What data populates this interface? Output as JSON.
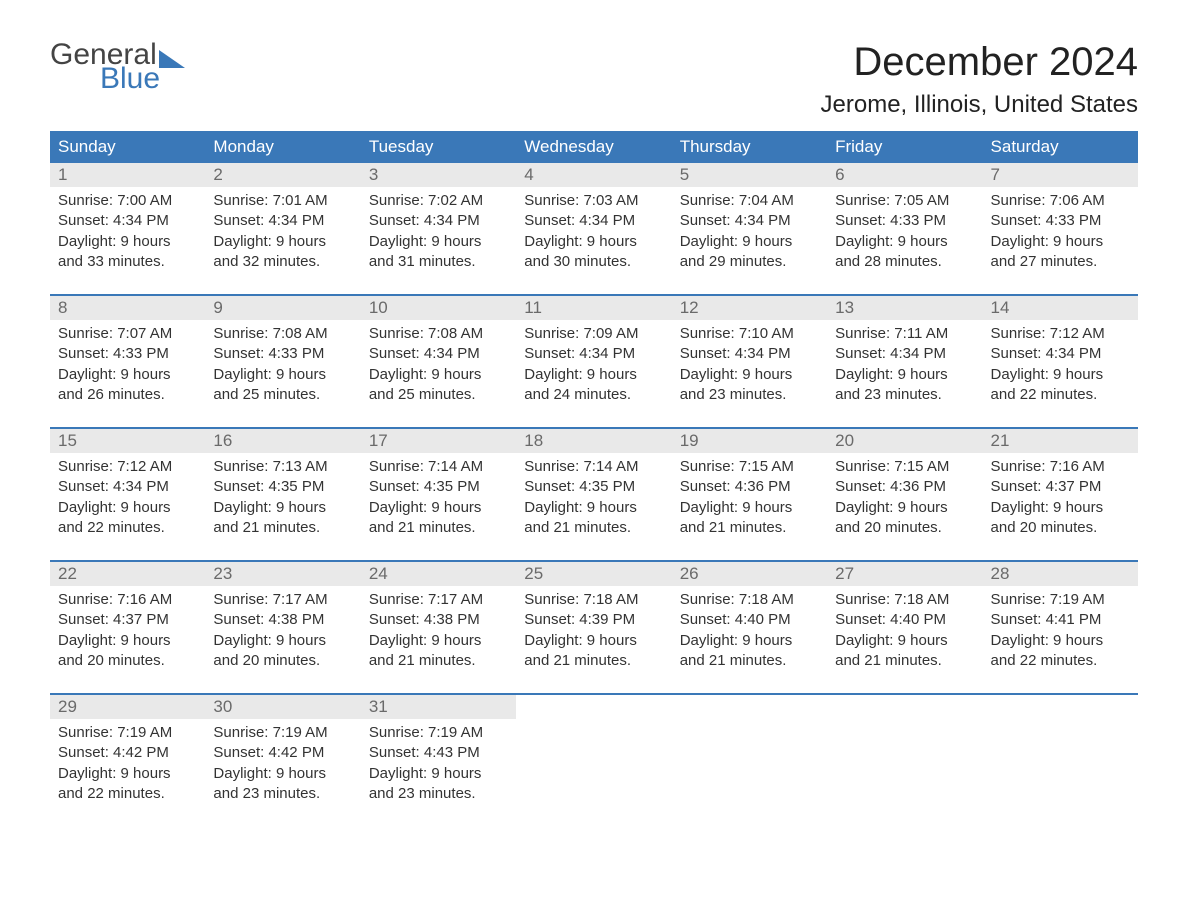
{
  "logo": {
    "text_general": "General",
    "text_blue": "Blue"
  },
  "title": "December 2024",
  "location": "Jerome, Illinois, United States",
  "colors": {
    "header_bg": "#3a78b8",
    "header_text": "#ffffff",
    "daynum_bg": "#e9e9e9",
    "daynum_text": "#6a6a6a",
    "body_text": "#333333",
    "background": "#ffffff"
  },
  "typography": {
    "title_fontsize": 40,
    "location_fontsize": 24,
    "header_fontsize": 17,
    "daynum_fontsize": 17,
    "detail_fontsize": 15
  },
  "dayHeaders": [
    "Sunday",
    "Monday",
    "Tuesday",
    "Wednesday",
    "Thursday",
    "Friday",
    "Saturday"
  ],
  "weeks": [
    [
      {
        "num": "1",
        "sunrise": "Sunrise: 7:00 AM",
        "sunset": "Sunset: 4:34 PM",
        "d1": "Daylight: 9 hours",
        "d2": "and 33 minutes."
      },
      {
        "num": "2",
        "sunrise": "Sunrise: 7:01 AM",
        "sunset": "Sunset: 4:34 PM",
        "d1": "Daylight: 9 hours",
        "d2": "and 32 minutes."
      },
      {
        "num": "3",
        "sunrise": "Sunrise: 7:02 AM",
        "sunset": "Sunset: 4:34 PM",
        "d1": "Daylight: 9 hours",
        "d2": "and 31 minutes."
      },
      {
        "num": "4",
        "sunrise": "Sunrise: 7:03 AM",
        "sunset": "Sunset: 4:34 PM",
        "d1": "Daylight: 9 hours",
        "d2": "and 30 minutes."
      },
      {
        "num": "5",
        "sunrise": "Sunrise: 7:04 AM",
        "sunset": "Sunset: 4:34 PM",
        "d1": "Daylight: 9 hours",
        "d2": "and 29 minutes."
      },
      {
        "num": "6",
        "sunrise": "Sunrise: 7:05 AM",
        "sunset": "Sunset: 4:33 PM",
        "d1": "Daylight: 9 hours",
        "d2": "and 28 minutes."
      },
      {
        "num": "7",
        "sunrise": "Sunrise: 7:06 AM",
        "sunset": "Sunset: 4:33 PM",
        "d1": "Daylight: 9 hours",
        "d2": "and 27 minutes."
      }
    ],
    [
      {
        "num": "8",
        "sunrise": "Sunrise: 7:07 AM",
        "sunset": "Sunset: 4:33 PM",
        "d1": "Daylight: 9 hours",
        "d2": "and 26 minutes."
      },
      {
        "num": "9",
        "sunrise": "Sunrise: 7:08 AM",
        "sunset": "Sunset: 4:33 PM",
        "d1": "Daylight: 9 hours",
        "d2": "and 25 minutes."
      },
      {
        "num": "10",
        "sunrise": "Sunrise: 7:08 AM",
        "sunset": "Sunset: 4:34 PM",
        "d1": "Daylight: 9 hours",
        "d2": "and 25 minutes."
      },
      {
        "num": "11",
        "sunrise": "Sunrise: 7:09 AM",
        "sunset": "Sunset: 4:34 PM",
        "d1": "Daylight: 9 hours",
        "d2": "and 24 minutes."
      },
      {
        "num": "12",
        "sunrise": "Sunrise: 7:10 AM",
        "sunset": "Sunset: 4:34 PM",
        "d1": "Daylight: 9 hours",
        "d2": "and 23 minutes."
      },
      {
        "num": "13",
        "sunrise": "Sunrise: 7:11 AM",
        "sunset": "Sunset: 4:34 PM",
        "d1": "Daylight: 9 hours",
        "d2": "and 23 minutes."
      },
      {
        "num": "14",
        "sunrise": "Sunrise: 7:12 AM",
        "sunset": "Sunset: 4:34 PM",
        "d1": "Daylight: 9 hours",
        "d2": "and 22 minutes."
      }
    ],
    [
      {
        "num": "15",
        "sunrise": "Sunrise: 7:12 AM",
        "sunset": "Sunset: 4:34 PM",
        "d1": "Daylight: 9 hours",
        "d2": "and 22 minutes."
      },
      {
        "num": "16",
        "sunrise": "Sunrise: 7:13 AM",
        "sunset": "Sunset: 4:35 PM",
        "d1": "Daylight: 9 hours",
        "d2": "and 21 minutes."
      },
      {
        "num": "17",
        "sunrise": "Sunrise: 7:14 AM",
        "sunset": "Sunset: 4:35 PM",
        "d1": "Daylight: 9 hours",
        "d2": "and 21 minutes."
      },
      {
        "num": "18",
        "sunrise": "Sunrise: 7:14 AM",
        "sunset": "Sunset: 4:35 PM",
        "d1": "Daylight: 9 hours",
        "d2": "and 21 minutes."
      },
      {
        "num": "19",
        "sunrise": "Sunrise: 7:15 AM",
        "sunset": "Sunset: 4:36 PM",
        "d1": "Daylight: 9 hours",
        "d2": "and 21 minutes."
      },
      {
        "num": "20",
        "sunrise": "Sunrise: 7:15 AM",
        "sunset": "Sunset: 4:36 PM",
        "d1": "Daylight: 9 hours",
        "d2": "and 20 minutes."
      },
      {
        "num": "21",
        "sunrise": "Sunrise: 7:16 AM",
        "sunset": "Sunset: 4:37 PM",
        "d1": "Daylight: 9 hours",
        "d2": "and 20 minutes."
      }
    ],
    [
      {
        "num": "22",
        "sunrise": "Sunrise: 7:16 AM",
        "sunset": "Sunset: 4:37 PM",
        "d1": "Daylight: 9 hours",
        "d2": "and 20 minutes."
      },
      {
        "num": "23",
        "sunrise": "Sunrise: 7:17 AM",
        "sunset": "Sunset: 4:38 PM",
        "d1": "Daylight: 9 hours",
        "d2": "and 20 minutes."
      },
      {
        "num": "24",
        "sunrise": "Sunrise: 7:17 AM",
        "sunset": "Sunset: 4:38 PM",
        "d1": "Daylight: 9 hours",
        "d2": "and 21 minutes."
      },
      {
        "num": "25",
        "sunrise": "Sunrise: 7:18 AM",
        "sunset": "Sunset: 4:39 PM",
        "d1": "Daylight: 9 hours",
        "d2": "and 21 minutes."
      },
      {
        "num": "26",
        "sunrise": "Sunrise: 7:18 AM",
        "sunset": "Sunset: 4:40 PM",
        "d1": "Daylight: 9 hours",
        "d2": "and 21 minutes."
      },
      {
        "num": "27",
        "sunrise": "Sunrise: 7:18 AM",
        "sunset": "Sunset: 4:40 PM",
        "d1": "Daylight: 9 hours",
        "d2": "and 21 minutes."
      },
      {
        "num": "28",
        "sunrise": "Sunrise: 7:19 AM",
        "sunset": "Sunset: 4:41 PM",
        "d1": "Daylight: 9 hours",
        "d2": "and 22 minutes."
      }
    ],
    [
      {
        "num": "29",
        "sunrise": "Sunrise: 7:19 AM",
        "sunset": "Sunset: 4:42 PM",
        "d1": "Daylight: 9 hours",
        "d2": "and 22 minutes."
      },
      {
        "num": "30",
        "sunrise": "Sunrise: 7:19 AM",
        "sunset": "Sunset: 4:42 PM",
        "d1": "Daylight: 9 hours",
        "d2": "and 23 minutes."
      },
      {
        "num": "31",
        "sunrise": "Sunrise: 7:19 AM",
        "sunset": "Sunset: 4:43 PM",
        "d1": "Daylight: 9 hours",
        "d2": "and 23 minutes."
      },
      null,
      null,
      null,
      null
    ]
  ]
}
